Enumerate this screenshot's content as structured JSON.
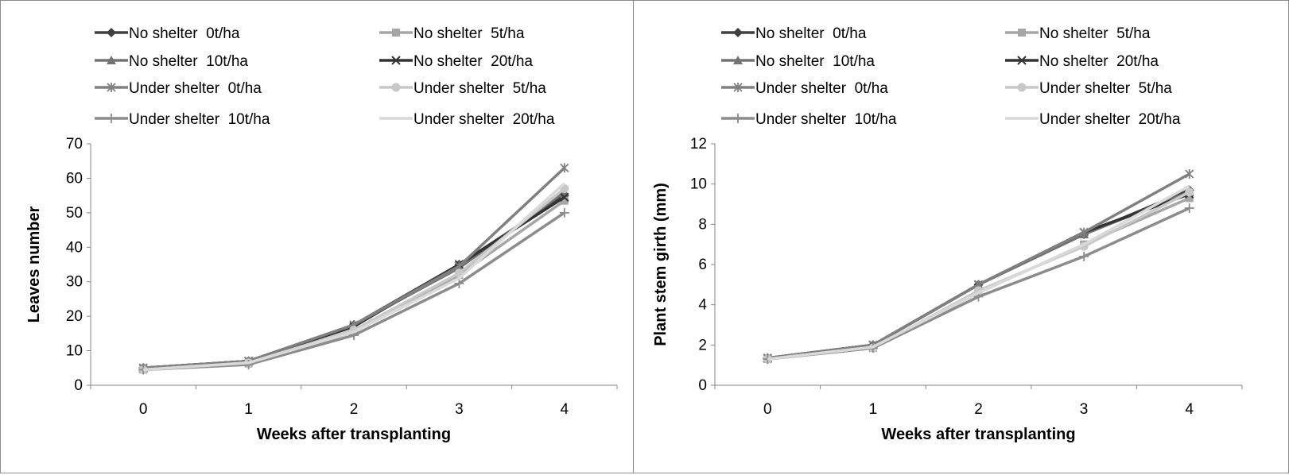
{
  "chart_data": [
    {
      "type": "line",
      "title": "",
      "xlabel": "Weeks after transplanting",
      "ylabel": "Leaves number",
      "x": [
        0,
        1,
        2,
        3,
        4
      ],
      "ylim": [
        0,
        70
      ],
      "yticks": [
        0,
        10,
        20,
        30,
        40,
        50,
        60,
        70
      ],
      "grid": false,
      "legend_position": "top",
      "series": [
        {
          "name": "No shelter  0t/ha",
          "values": [
            5.0,
            7.0,
            17.5,
            35.0,
            55.0
          ],
          "color": "#404040",
          "marker": "diamond"
        },
        {
          "name": "No shelter  5t/ha",
          "values": [
            4.5,
            6.3,
            15.5,
            32.0,
            53.5
          ],
          "color": "#a6a6a6",
          "marker": "square"
        },
        {
          "name": "No shelter  10t/ha",
          "values": [
            5.0,
            7.0,
            17.5,
            34.0,
            56.0
          ],
          "color": "#737373",
          "marker": "triangle"
        },
        {
          "name": "No shelter  20t/ha",
          "values": [
            5.0,
            7.0,
            17.0,
            35.0,
            54.5
          ],
          "color": "#333333",
          "marker": "x"
        },
        {
          "name": "Under shelter  0t/ha",
          "values": [
            5.0,
            7.0,
            17.5,
            34.5,
            63.0
          ],
          "color": "#808080",
          "marker": "star"
        },
        {
          "name": "Under shelter  5t/ha",
          "values": [
            4.5,
            6.5,
            16.0,
            32.5,
            57.0
          ],
          "color": "#c8c8c8",
          "marker": "circle"
        },
        {
          "name": "Under shelter  10t/ha",
          "values": [
            4.5,
            6.0,
            14.5,
            29.5,
            50.0
          ],
          "color": "#8c8c8c",
          "marker": "plus"
        },
        {
          "name": "Under shelter  20t/ha",
          "values": [
            4.5,
            6.5,
            15.5,
            31.0,
            58.5
          ],
          "color": "#d9d9d9",
          "marker": "none"
        }
      ]
    },
    {
      "type": "line",
      "title": "",
      "xlabel": "Weeks after transplanting",
      "ylabel": "Plant stem girth  (mm)",
      "x": [
        0,
        1,
        2,
        3,
        4
      ],
      "ylim": [
        0,
        12
      ],
      "yticks": [
        0,
        2,
        4,
        6,
        8,
        10,
        12
      ],
      "grid": false,
      "legend_position": "top",
      "series": [
        {
          "name": "No shelter  0t/ha",
          "values": [
            1.35,
            2.0,
            5.0,
            7.5,
            9.7
          ],
          "color": "#404040",
          "marker": "diamond"
        },
        {
          "name": "No shelter  5t/ha",
          "values": [
            1.3,
            1.85,
            4.6,
            7.0,
            9.3
          ],
          "color": "#a6a6a6",
          "marker": "square"
        },
        {
          "name": "No shelter  10t/ha",
          "values": [
            1.35,
            2.0,
            5.0,
            7.5,
            9.6
          ],
          "color": "#737373",
          "marker": "triangle"
        },
        {
          "name": "No shelter  20t/ha",
          "values": [
            1.35,
            2.0,
            5.0,
            7.6,
            9.5
          ],
          "color": "#333333",
          "marker": "x"
        },
        {
          "name": "Under shelter  0t/ha",
          "values": [
            1.35,
            2.0,
            5.0,
            7.6,
            10.5
          ],
          "color": "#808080",
          "marker": "star"
        },
        {
          "name": "Under shelter  5t/ha",
          "values": [
            1.3,
            1.85,
            4.7,
            6.9,
            9.6
          ],
          "color": "#c8c8c8",
          "marker": "circle"
        },
        {
          "name": "Under shelter  10t/ha",
          "values": [
            1.3,
            1.85,
            4.4,
            6.4,
            8.8
          ],
          "color": "#8c8c8c",
          "marker": "plus"
        },
        {
          "name": "Under shelter  20t/ha",
          "values": [
            1.3,
            1.9,
            4.6,
            7.0,
            9.9
          ],
          "color": "#d9d9d9",
          "marker": "none"
        }
      ]
    }
  ]
}
